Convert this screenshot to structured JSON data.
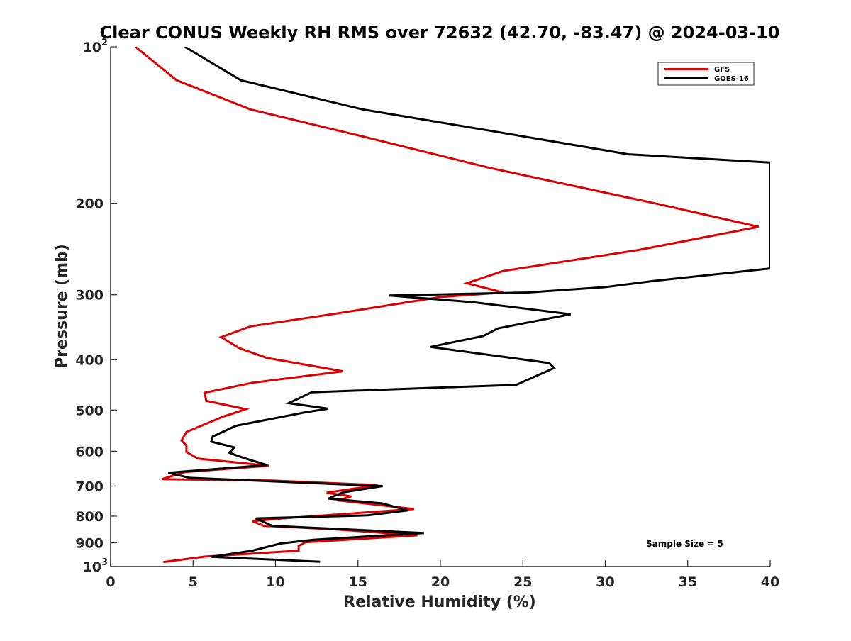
{
  "chart_data": {
    "type": "line",
    "title": "Clear CONUS Weekly RH RMS over 72632 (42.70, -83.47) @ 2024-03-10",
    "xlabel": "Relative Humidity (%)",
    "ylabel": "Pressure (mb)",
    "xlim": [
      0,
      40
    ],
    "ylim": [
      100,
      1000
    ],
    "y_scale": "log",
    "y_direction": "reversed",
    "x_ticks": [
      "0",
      "5",
      "10",
      "15",
      "20",
      "25",
      "30",
      "35",
      "40"
    ],
    "y_ticks": [
      {
        "value": 100,
        "label": "10",
        "sup": "2"
      },
      {
        "value": 200,
        "label": "200"
      },
      {
        "value": 300,
        "label": "300"
      },
      {
        "value": 400,
        "label": "400"
      },
      {
        "value": 500,
        "label": "500"
      },
      {
        "value": 600,
        "label": "600"
      },
      {
        "value": 700,
        "label": "700"
      },
      {
        "value": 800,
        "label": "800"
      },
      {
        "value": 900,
        "label": "900"
      },
      {
        "value": 1000,
        "label": "10",
        "sup": "3"
      }
    ],
    "legend_position": "top-right",
    "grid": false,
    "annotation": "Sample Size = 5",
    "series": [
      {
        "name": "GFS",
        "color": "#dd0000",
        "points": [
          [
            1.5,
            100
          ],
          [
            4.0,
            116
          ],
          [
            8.5,
            132
          ],
          [
            15.0,
            148
          ],
          [
            23.0,
            171
          ],
          [
            33.0,
            200
          ],
          [
            39.3,
            222
          ],
          [
            32.0,
            246
          ],
          [
            23.8,
            270
          ],
          [
            21.6,
            285
          ],
          [
            23.8,
            297
          ],
          [
            20.0,
            303
          ],
          [
            13.7,
            326
          ],
          [
            8.5,
            345
          ],
          [
            6.7,
            362
          ],
          [
            7.8,
            380
          ],
          [
            9.5,
            397
          ],
          [
            14.1,
            421
          ],
          [
            8.6,
            443
          ],
          [
            5.7,
            463
          ],
          [
            5.8,
            480
          ],
          [
            8.2,
            498
          ],
          [
            6.8,
            515
          ],
          [
            4.6,
            551
          ],
          [
            4.3,
            572
          ],
          [
            4.6,
            585
          ],
          [
            4.6,
            602
          ],
          [
            5.3,
            620
          ],
          [
            9.6,
            640
          ],
          [
            4.5,
            658
          ],
          [
            3.1,
            679
          ],
          [
            9.6,
            683
          ],
          [
            16.2,
            697
          ],
          [
            13.1,
            721
          ],
          [
            14.6,
            733
          ],
          [
            13.8,
            746
          ],
          [
            18.4,
            775
          ],
          [
            10.4,
            808
          ],
          [
            8.6,
            818
          ],
          [
            9.3,
            835
          ],
          [
            13.8,
            849
          ],
          [
            18.6,
            871
          ],
          [
            11.8,
            898
          ],
          [
            11.4,
            913
          ],
          [
            11.4,
            932
          ],
          [
            5.7,
            957
          ],
          [
            3.2,
            980
          ]
        ]
      },
      {
        "name": "GOES-16",
        "color": "#000000",
        "points": [
          [
            4.5,
            100
          ],
          [
            7.9,
            116
          ],
          [
            15.3,
            132
          ],
          [
            23.0,
            145
          ],
          [
            31.4,
            161
          ],
          [
            40.0,
            167
          ],
          [
            40.0,
            267
          ],
          [
            33.0,
            282
          ],
          [
            30.0,
            290
          ],
          [
            25.3,
            297
          ],
          [
            16.9,
            301
          ],
          [
            22.0,
            310
          ],
          [
            27.9,
            327
          ],
          [
            23.5,
            348
          ],
          [
            22.6,
            360
          ],
          [
            19.4,
            378
          ],
          [
            26.6,
            406
          ],
          [
            26.9,
            415
          ],
          [
            24.6,
            447
          ],
          [
            12.2,
            462
          ],
          [
            10.8,
            485
          ],
          [
            13.2,
            497
          ],
          [
            11.8,
            505
          ],
          [
            7.6,
            536
          ],
          [
            6.2,
            562
          ],
          [
            6.1,
            575
          ],
          [
            7.5,
            590
          ],
          [
            7.2,
            604
          ],
          [
            7.8,
            614
          ],
          [
            8.5,
            624
          ],
          [
            9.5,
            638
          ],
          [
            3.5,
            660
          ],
          [
            4.8,
            675
          ],
          [
            16.5,
            700
          ],
          [
            14.1,
            720
          ],
          [
            13.2,
            740
          ],
          [
            16.5,
            756
          ],
          [
            18.0,
            780
          ],
          [
            15.6,
            797
          ],
          [
            8.8,
            808
          ],
          [
            9.8,
            835
          ],
          [
            19.0,
            862
          ],
          [
            12.3,
            888
          ],
          [
            10.3,
            903
          ],
          [
            8.6,
            932
          ],
          [
            6.1,
            958
          ],
          [
            12.7,
            979
          ]
        ]
      }
    ]
  }
}
